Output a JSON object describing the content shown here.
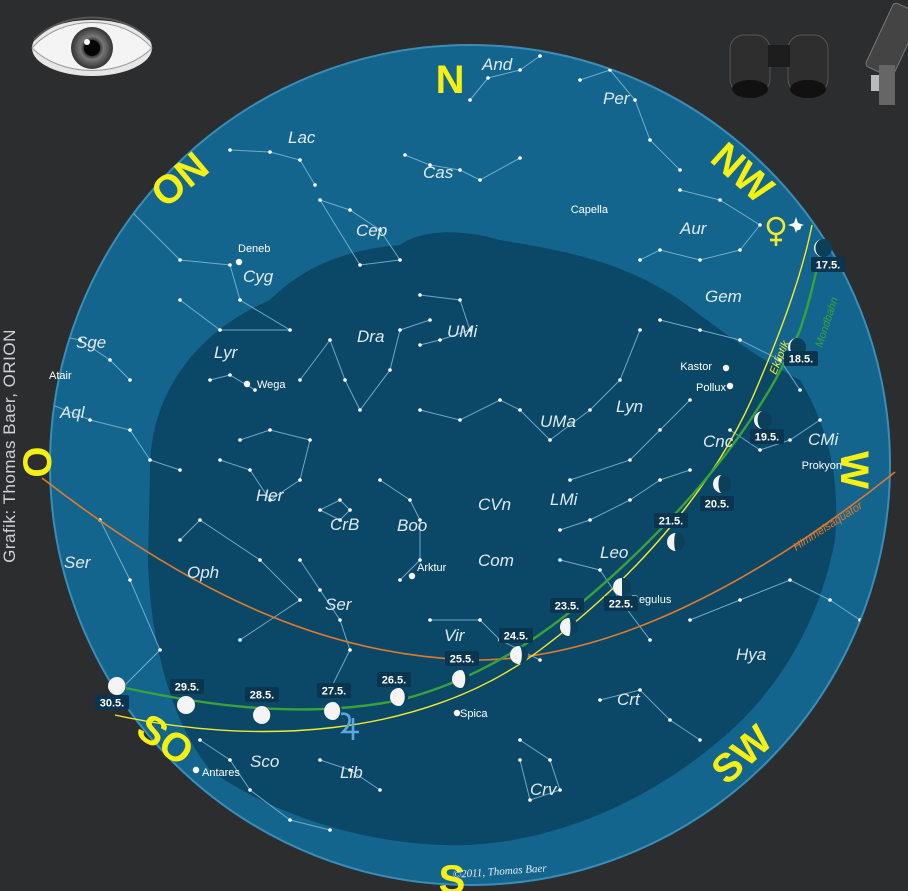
{
  "credit": "Grafik: Thomas Baer, ORION",
  "copyright": "©2011, Thomas Baer",
  "colors": {
    "background": "#2b2d2f",
    "sky_outer": "#0f5b82",
    "sky_inner": "#0a4a6b",
    "horizon_band": "#1c7098",
    "star": "#ffffff",
    "constellation_line": "#8fc3dd",
    "ecliptic": "#f3ea2b",
    "moon_path": "#3aa23a",
    "celestial_equator": "#e07a2c",
    "direction_label": "#f5ef12"
  },
  "icons": {
    "naked_eye": "eye-icon",
    "binoculars": "binoculars-icon",
    "telescope": "telescope-icon",
    "venus": "venus-symbol",
    "jupiter": "jupiter-symbol"
  },
  "directions": [
    "N",
    "NW",
    "W",
    "SW",
    "S",
    "SO",
    "O",
    "ON"
  ],
  "line_labels": {
    "ecliptic": "Ekliptik",
    "moon_path": "Mondbahn",
    "equator": "Himmelsäquator"
  },
  "constellations": [
    "And",
    "Per",
    "Lac",
    "Cas",
    "Cep",
    "Aur",
    "Cyg",
    "Sge",
    "Lyr",
    "Dra",
    "UMi",
    "Gem",
    "Aql",
    "UMa",
    "Lyn",
    "Cnc",
    "CMi",
    "Her",
    "CVn",
    "LMi",
    "Boo",
    "CrB",
    "Leo",
    "Ser",
    "Oph",
    "Com",
    "Ser",
    "Vir",
    "Hya",
    "Crt",
    "Sco",
    "Lib",
    "Crv"
  ],
  "stars": [
    "Capella",
    "Deneb",
    "Wega",
    "Atair",
    "Kastor",
    "Pollux",
    "Prokyon",
    "Regulus",
    "Arktur",
    "Spica",
    "Antares"
  ],
  "moon_phases": [
    {
      "date": "17.5.",
      "phase": 0.08
    },
    {
      "date": "18.5.",
      "phase": 0.12
    },
    {
      "date": "19.5.",
      "phase": 0.2
    },
    {
      "date": "20.5.",
      "phase": 0.3
    },
    {
      "date": "21.5.",
      "phase": 0.4
    },
    {
      "date": "22.5.",
      "phase": 0.5
    },
    {
      "date": "23.5.",
      "phase": 0.58
    },
    {
      "date": "24.5.",
      "phase": 0.66
    },
    {
      "date": "25.5.",
      "phase": 0.74
    },
    {
      "date": "26.5.",
      "phase": 0.82
    },
    {
      "date": "27.5.",
      "phase": 0.9
    },
    {
      "date": "28.5.",
      "phase": 0.96
    },
    {
      "date": "29.5.",
      "phase": 1.0
    },
    {
      "date": "30.5.",
      "phase": 0.97
    }
  ]
}
